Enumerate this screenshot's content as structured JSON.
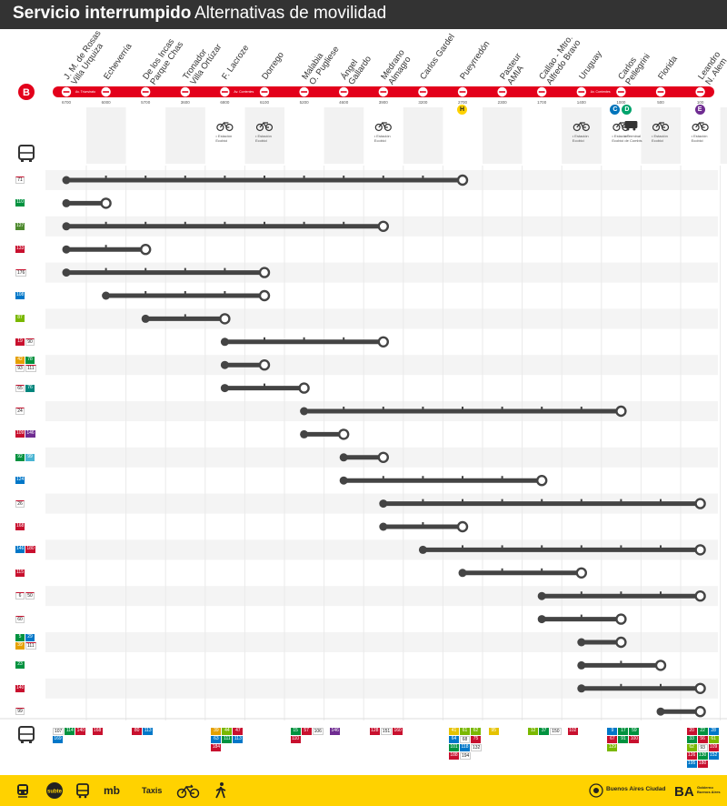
{
  "header": {
    "title_bold": "Servicio interrumpido",
    "title_rest": "Alternativas de movilidad"
  },
  "line": {
    "name": "B",
    "color": "#E3001B"
  },
  "stations": [
    {
      "name": "J. M. de Rosas\nVilla Urquiza",
      "addr": "6700"
    },
    {
      "name": "Echeverría",
      "addr": "6000"
    },
    {
      "name": "De los Incas\nParque Chas",
      "addr": "5700"
    },
    {
      "name": "Tronador\nVilla Ortúzar",
      "addr": "3600"
    },
    {
      "name": "F. Lacroze",
      "addr": "6800"
    },
    {
      "name": "Dorrego",
      "addr": "6100"
    },
    {
      "name": "Malabia\nO. Pugliese",
      "addr": "5200"
    },
    {
      "name": "Ángel\nGallardo",
      "addr": "4600"
    },
    {
      "name": "Medrano\nAlmagro",
      "addr": "3900"
    },
    {
      "name": "Carlos Gardel",
      "addr": "3200"
    },
    {
      "name": "Pueyrredón",
      "addr": "2700"
    },
    {
      "name": "Pasteur\nAMIA",
      "addr": "2300"
    },
    {
      "name": "Callao - Mtro.\nAlfredo Bravo",
      "addr": "1700"
    },
    {
      "name": "Uruguay",
      "addr": "1400"
    },
    {
      "name": "Carlos\nPellegrini",
      "addr": "1000"
    },
    {
      "name": "Florida",
      "addr": "500"
    },
    {
      "name": "Leandro\nN. Alem",
      "addr": "100"
    }
  ],
  "streets": {
    "west": "Av. Triunvirato",
    "mid": "Av. Corrientes",
    "east": "Av. Corrientes"
  },
  "bike_note": "• Estación\nEcobici",
  "bike_note_transfer": "• Terminal\nde Combis",
  "connections": [
    {
      "station": 10,
      "label": "H",
      "color": "#FFD200"
    },
    {
      "station": 14,
      "label": "C",
      "color": "#0074BB"
    },
    {
      "station": 14,
      "label": "D",
      "color": "#00A36C"
    },
    {
      "station": 16,
      "label": "E",
      "color": "#6F2C91"
    }
  ],
  "bike_stations": [
    4,
    5,
    8,
    13,
    14,
    15,
    16
  ],
  "bus_rows": [
    {
      "lines": [
        {
          "n": "71",
          "c": "#FFFFFF"
        }
      ],
      "from": 0,
      "to": 10
    },
    {
      "lines": [
        {
          "n": "110",
          "c": "#00923F"
        }
      ],
      "from": 0,
      "to": 1
    },
    {
      "lines": [
        {
          "n": "127",
          "c": "#4E8A2E"
        }
      ],
      "from": 0,
      "to": 8
    },
    {
      "lines": [
        {
          "n": "133",
          "c": "#C8102E"
        }
      ],
      "from": 0,
      "to": 2
    },
    {
      "lines": [
        {
          "n": "176",
          "c": "#FFFFFF"
        }
      ],
      "from": 0,
      "to": 5
    },
    {
      "lines": [
        {
          "n": "108",
          "c": "#0077C8"
        }
      ],
      "from": 1,
      "to": 5
    },
    {
      "lines": [
        {
          "n": "87",
          "c": "#7AB800"
        }
      ],
      "from": 2,
      "to": 4
    },
    {
      "lines": [
        {
          "n": "19",
          "c": "#C8102E"
        },
        {
          "n": "90",
          "c": "#FFFFFF"
        }
      ],
      "from": 4,
      "to": 8
    },
    {
      "lines": [
        {
          "n": "42",
          "c": "#E5A000"
        },
        {
          "n": "78",
          "c": "#00923F"
        },
        {
          "n": "93",
          "c": "#FFFFFF"
        },
        {
          "n": "111",
          "c": "#FFFFFF"
        }
      ],
      "from": 4,
      "to": 5
    },
    {
      "lines": [
        {
          "n": "65",
          "c": "#FFFFFF"
        },
        {
          "n": "76",
          "c": "#00857C"
        }
      ],
      "from": 4,
      "to": 6
    },
    {
      "lines": [
        {
          "n": "24",
          "c": "#FFFFFF"
        }
      ],
      "from": 6,
      "to": 14
    },
    {
      "lines": [
        {
          "n": "109",
          "c": "#C8102E"
        },
        {
          "n": "146",
          "c": "#6F2C91"
        }
      ],
      "from": 6,
      "to": 7
    },
    {
      "lines": [
        {
          "n": "92",
          "c": "#00923F"
        },
        {
          "n": "99",
          "c": "#4AB5D3"
        }
      ],
      "from": 7,
      "to": 8
    },
    {
      "lines": [
        {
          "n": "124",
          "c": "#0077C8"
        }
      ],
      "from": 7,
      "to": 12
    },
    {
      "lines": [
        {
          "n": "26",
          "c": "#FFFFFF"
        }
      ],
      "from": 8,
      "to": 16
    },
    {
      "lines": [
        {
          "n": "168",
          "c": "#C8102E"
        }
      ],
      "from": 8,
      "to": 10
    },
    {
      "lines": [
        {
          "n": "146",
          "c": "#0077C8"
        },
        {
          "n": "180",
          "c": "#C8102E"
        }
      ],
      "from": 9,
      "to": 16
    },
    {
      "lines": [
        {
          "n": "115",
          "c": "#C8102E"
        }
      ],
      "from": 10,
      "to": 13
    },
    {
      "lines": [
        {
          "n": "6",
          "c": "#FFFFFF"
        },
        {
          "n": "50",
          "c": "#FFFFFF"
        }
      ],
      "from": 12,
      "to": 16
    },
    {
      "lines": [
        {
          "n": "60",
          "c": "#FFFFFF"
        }
      ],
      "from": 12,
      "to": 14
    },
    {
      "lines": [
        {
          "n": "5",
          "c": "#00923F"
        },
        {
          "n": "29",
          "c": "#0077C8"
        },
        {
          "n": "39",
          "c": "#E5A000"
        },
        {
          "n": "111",
          "c": "#FFFFFF"
        }
      ],
      "from": 13,
      "to": 14
    },
    {
      "lines": [
        {
          "n": "23",
          "c": "#00923F"
        }
      ],
      "from": 13,
      "to": 15
    },
    {
      "lines": [
        {
          "n": "140",
          "c": "#C8102E"
        }
      ],
      "from": 13,
      "to": 16
    },
    {
      "lines": [
        {
          "n": "99",
          "c": "#FFFFFF"
        }
      ],
      "from": 15,
      "to": 16
    }
  ],
  "bottom_buses": [
    {
      "station": 0,
      "lines": [
        {
          "n": "107",
          "c": "#FFFFFF"
        },
        {
          "n": "114",
          "c": "#00923F"
        },
        {
          "n": "140",
          "c": "#C8102E"
        },
        {
          "n": "169",
          "c": "#0077C8"
        }
      ]
    },
    {
      "station": 1,
      "lines": [
        {
          "n": "168",
          "c": "#C8102E"
        }
      ]
    },
    {
      "station": 2,
      "lines": [
        {
          "n": "80",
          "c": "#C8102E"
        },
        {
          "n": "113",
          "c": "#0077C8"
        }
      ]
    },
    {
      "station": 4,
      "lines": [
        {
          "n": "39",
          "c": "#E5A000"
        },
        {
          "n": "44",
          "c": "#7AB800"
        },
        {
          "n": "47",
          "c": "#C8102E"
        },
        {
          "n": "63",
          "c": "#0077C8"
        },
        {
          "n": "111",
          "c": "#00923F"
        },
        {
          "n": "113",
          "c": "#0077C8"
        },
        {
          "n": "184",
          "c": "#C8102E"
        }
      ]
    },
    {
      "station": 6,
      "lines": [
        {
          "n": "15",
          "c": "#00923F"
        },
        {
          "n": "57",
          "c": "#C8102E"
        },
        {
          "n": "106",
          "c": "#FFFFFF"
        },
        {
          "n": "110",
          "c": "#C8102E"
        }
      ]
    },
    {
      "station": 7,
      "lines": [
        {
          "n": "146",
          "c": "#6F2C91"
        }
      ]
    },
    {
      "station": 8,
      "lines": [
        {
          "n": "128",
          "c": "#C8102E"
        },
        {
          "n": "151",
          "c": "#FFFFFF"
        },
        {
          "n": "160",
          "c": "#C8102E"
        }
      ]
    },
    {
      "station": 10,
      "lines": [
        {
          "n": "41",
          "c": "#E5C200"
        },
        {
          "n": "61",
          "c": "#7AB800"
        },
        {
          "n": "62",
          "c": "#7AB800"
        },
        {
          "n": "64",
          "c": "#0077C8"
        },
        {
          "n": "68",
          "c": "#FFFFFF"
        },
        {
          "n": "75",
          "c": "#C8102E"
        },
        {
          "n": "101",
          "c": "#00923F"
        },
        {
          "n": "118",
          "c": "#0077C8"
        },
        {
          "n": "132",
          "c": "#FFFFFF"
        },
        {
          "n": "188",
          "c": "#C8102E"
        },
        {
          "n": "194",
          "c": "#FFFFFF"
        }
      ]
    },
    {
      "station": 11,
      "lines": [
        {
          "n": "95",
          "c": "#E5C200"
        }
      ]
    },
    {
      "station": 12,
      "lines": [
        {
          "n": "12",
          "c": "#7AB800"
        },
        {
          "n": "37",
          "c": "#00923F"
        },
        {
          "n": "150",
          "c": "#FFFFFF"
        }
      ]
    },
    {
      "station": 13,
      "lines": [
        {
          "n": "102",
          "c": "#C8102E"
        }
      ]
    },
    {
      "station": 14,
      "lines": [
        {
          "n": "9",
          "c": "#0077C8"
        },
        {
          "n": "17",
          "c": "#00923F"
        },
        {
          "n": "59",
          "c": "#00923F"
        },
        {
          "n": "67",
          "c": "#C8102E"
        },
        {
          "n": "91",
          "c": "#00923F"
        },
        {
          "n": "100",
          "c": "#C8102E"
        },
        {
          "n": "129",
          "c": "#7AB800"
        }
      ]
    },
    {
      "station": 16,
      "lines": [
        {
          "n": "20",
          "c": "#C8102E"
        },
        {
          "n": "22",
          "c": "#00923F"
        },
        {
          "n": "28",
          "c": "#0077C8"
        },
        {
          "n": "33",
          "c": "#00923F"
        },
        {
          "n": "56",
          "c": "#C8102E"
        },
        {
          "n": "61",
          "c": "#7AB800"
        },
        {
          "n": "62",
          "c": "#7AB800"
        },
        {
          "n": "93",
          "c": "#FFFFFF"
        },
        {
          "n": "109",
          "c": "#C8102E"
        },
        {
          "n": "126",
          "c": "#C8102E"
        },
        {
          "n": "130",
          "c": "#00923F"
        },
        {
          "n": "152",
          "c": "#0077C8"
        },
        {
          "n": "195",
          "c": "#0077C8"
        },
        {
          "n": "180",
          "c": "#C8102E"
        }
      ]
    }
  ],
  "footer": {
    "items": [
      "Taxis"
    ],
    "brand1": "Buenos Aires Ciudad",
    "brand2_line1": "Gobierno",
    "brand2_line2": "Buenos Aires"
  },
  "colors": {
    "track": "#444444",
    "stripe": "#F2F2F2",
    "footer": "#FFD200",
    "header": "#333333"
  }
}
